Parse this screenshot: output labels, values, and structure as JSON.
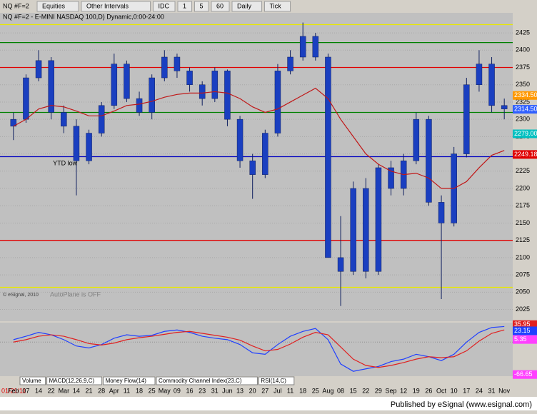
{
  "toolbar": {
    "symbol": "NQ #F=2",
    "buttons": [
      "Equities",
      "Other Intervals",
      "IDC",
      "1",
      "5",
      "60",
      "Daily",
      "Tick"
    ]
  },
  "chart_data": [
    {
      "type": "candlestick",
      "title": "NQ #F=2 - E-MINI NASDAQ 100,D) Dynamic,0:00-24:00",
      "annotation": "YTD low",
      "watermark": "AutoPlane is OFF",
      "copyright": "© eSignal, 2010",
      "color": "#1a3fc0",
      "categories": [
        "Feb",
        "07",
        "14",
        "22",
        "Mar",
        "14",
        "21",
        "28",
        "Apr",
        "11",
        "18",
        "25",
        "May",
        "09",
        "16",
        "23",
        "31",
        "Jun",
        "13",
        "20",
        "27",
        "Jul",
        "11",
        "18",
        "25",
        "Aug",
        "08",
        "15",
        "22",
        "29",
        "Sep",
        "12",
        "19",
        "26",
        "Oct",
        "10",
        "17",
        "24",
        "31",
        "Nov"
      ],
      "open": [
        2290,
        2300,
        2360,
        2385,
        2310,
        2290,
        2240,
        2280,
        2320,
        2380,
        2330,
        2310,
        2360,
        2390,
        2370,
        2350,
        2330,
        2370,
        2300,
        2240,
        2220,
        2280,
        2370,
        2390,
        2420,
        2390,
        2100,
        2080,
        2200,
        2080,
        2230,
        2200,
        2240,
        2300,
        2180,
        2150,
        2250,
        2350,
        2380,
        2320
      ],
      "high": [
        2310,
        2365,
        2400,
        2390,
        2320,
        2300,
        2285,
        2325,
        2395,
        2385,
        2340,
        2365,
        2400,
        2395,
        2375,
        2355,
        2375,
        2372,
        2305,
        2250,
        2285,
        2380,
        2400,
        2440,
        2425,
        2395,
        2160,
        2210,
        2215,
        2235,
        2240,
        2250,
        2310,
        2305,
        2190,
        2260,
        2360,
        2400,
        2390,
        2330
      ],
      "low": [
        2270,
        2295,
        2355,
        2300,
        2280,
        2190,
        2235,
        2275,
        2315,
        2325,
        2305,
        2300,
        2355,
        2360,
        2340,
        2320,
        2325,
        2290,
        2230,
        2185,
        2215,
        2275,
        2365,
        2385,
        2385,
        2100,
        2030,
        2075,
        2070,
        2075,
        2190,
        2190,
        2235,
        2175,
        2040,
        2145,
        2245,
        2340,
        2310,
        2300
      ],
      "close": [
        2300,
        2360,
        2385,
        2310,
        2290,
        2240,
        2280,
        2320,
        2380,
        2330,
        2310,
        2360,
        2390,
        2370,
        2350,
        2330,
        2370,
        2300,
        2240,
        2220,
        2280,
        2370,
        2390,
        2420,
        2390,
        2100,
        2080,
        2200,
        2080,
        2230,
        2200,
        2240,
        2300,
        2180,
        2150,
        2250,
        2350,
        2380,
        2320,
        2315
      ],
      "average": {
        "color": "#c01818",
        "values": [
          2290,
          2300,
          2315,
          2320,
          2318,
          2312,
          2305,
          2305,
          2312,
          2320,
          2322,
          2326,
          2332,
          2336,
          2338,
          2338,
          2340,
          2338,
          2330,
          2318,
          2310,
          2315,
          2325,
          2335,
          2345,
          2330,
          2300,
          2275,
          2250,
          2235,
          2225,
          2220,
          2222,
          2215,
          2200,
          2200,
          2210,
          2230,
          2248,
          2255
        ]
      },
      "levels": [
        {
          "value": 2437,
          "color": "#e8e800"
        },
        {
          "value": 2411,
          "color": "#008000"
        },
        {
          "value": 2375,
          "color": "#e00000"
        },
        {
          "value": 2310,
          "color": "#008000"
        },
        {
          "value": 2246,
          "color": "#0000c0"
        },
        {
          "value": 2125,
          "color": "#e00000"
        },
        {
          "value": 2057,
          "color": "#e8e800"
        }
      ],
      "price_tags": [
        {
          "value": 2334.5,
          "label": "2334.50",
          "color": "#ff9900"
        },
        {
          "value": 2314.5,
          "label": "2314.50",
          "color": "#3060ff"
        },
        {
          "value": 2279,
          "label": "2279.00",
          "color": "#00c0c0"
        },
        {
          "value": 2249.18,
          "label": "2249.18",
          "color": "#e00000"
        }
      ],
      "ylim": [
        2008,
        2454
      ],
      "yticks": [
        2025,
        2050,
        2075,
        2100,
        2125,
        2150,
        2175,
        2200,
        2225,
        2250,
        2275,
        2300,
        2325,
        2350,
        2375,
        2400,
        2425
      ]
    },
    {
      "type": "macd",
      "tabs": [
        "Volume",
        "MACD(12,26,9,C)",
        "Money Flow(14)",
        "Commodity Channel Index(23,C)",
        "RSI(14,C)"
      ],
      "series": [
        {
          "color": "#2040ff",
          "values": [
            5,
            12,
            20,
            15,
            5,
            -8,
            -12,
            -5,
            8,
            15,
            12,
            14,
            22,
            25,
            20,
            12,
            8,
            5,
            -5,
            -22,
            -25,
            -5,
            12,
            22,
            28,
            5,
            -45,
            -60,
            -55,
            -50,
            -40,
            -35,
            -25,
            -30,
            -38,
            -25,
            0,
            20,
            30,
            32
          ]
        },
        {
          "color": "#e02020",
          "values": [
            0,
            5,
            12,
            15,
            12,
            5,
            -3,
            -6,
            -2,
            5,
            9,
            12,
            16,
            20,
            22,
            18,
            14,
            10,
            4,
            -8,
            -18,
            -15,
            -4,
            10,
            20,
            15,
            -10,
            -35,
            -48,
            -52,
            -48,
            -42,
            -35,
            -30,
            -32,
            -30,
            -18,
            2,
            18,
            25
          ]
        }
      ],
      "price_tags": [
        {
          "value": 35.95,
          "label": "35.95",
          "color": "#e02020"
        },
        {
          "value": 23.15,
          "label": "23.15",
          "color": "#2040ff"
        },
        {
          "value": 5.35,
          "label": "5.35",
          "color": "#ff40ff"
        },
        {
          "value": -66.65,
          "label": "-66.65",
          "color": "#ff40ff"
        }
      ],
      "ylim": [
        -70,
        40
      ]
    }
  ],
  "footer": {
    "date": "01/21/11",
    "credit": "Published by eSignal (www.esignal.com)"
  }
}
